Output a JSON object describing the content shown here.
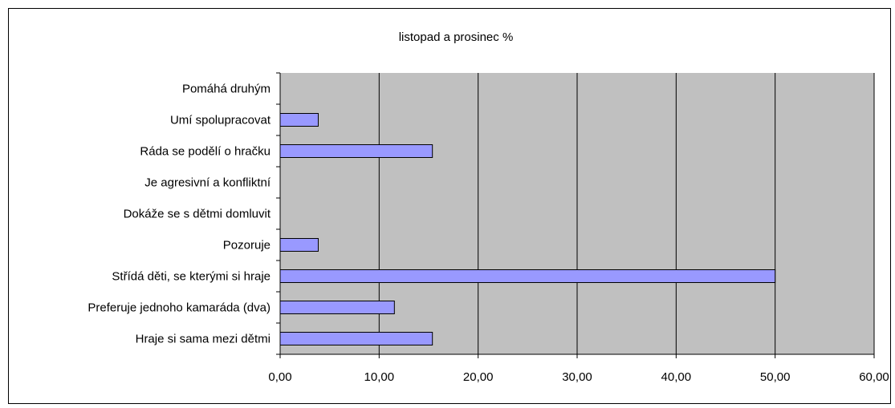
{
  "chart_data": {
    "type": "bar",
    "orientation": "horizontal",
    "title": "listopad a prosinec %",
    "categories": [
      "Pomáhá druhým",
      "Umí spolupracovat",
      "Ráda se podělí o hračku",
      "Je agresivní a konfliktní",
      "Dokáže se s dětmi domluvit",
      "Pozoruje",
      "Střídá děti, se kterými si hraje",
      "Preferuje jednoho kamaráda (dva)",
      "Hraje si sama mezi dětmi"
    ],
    "values": [
      0,
      3.85,
      15.38,
      0,
      0,
      3.85,
      50.0,
      11.54,
      15.38
    ],
    "xlim": [
      0,
      60
    ],
    "x_ticks": [
      "0,00",
      "10,00",
      "20,00",
      "30,00",
      "40,00",
      "50,00",
      "60,00"
    ],
    "grid": "vertical",
    "legend": "none",
    "colors": {
      "plot_background": "#c0c0c0",
      "bar_fill": "#9999ff",
      "bar_stroke": "#000000",
      "gridline": "#000000"
    }
  }
}
